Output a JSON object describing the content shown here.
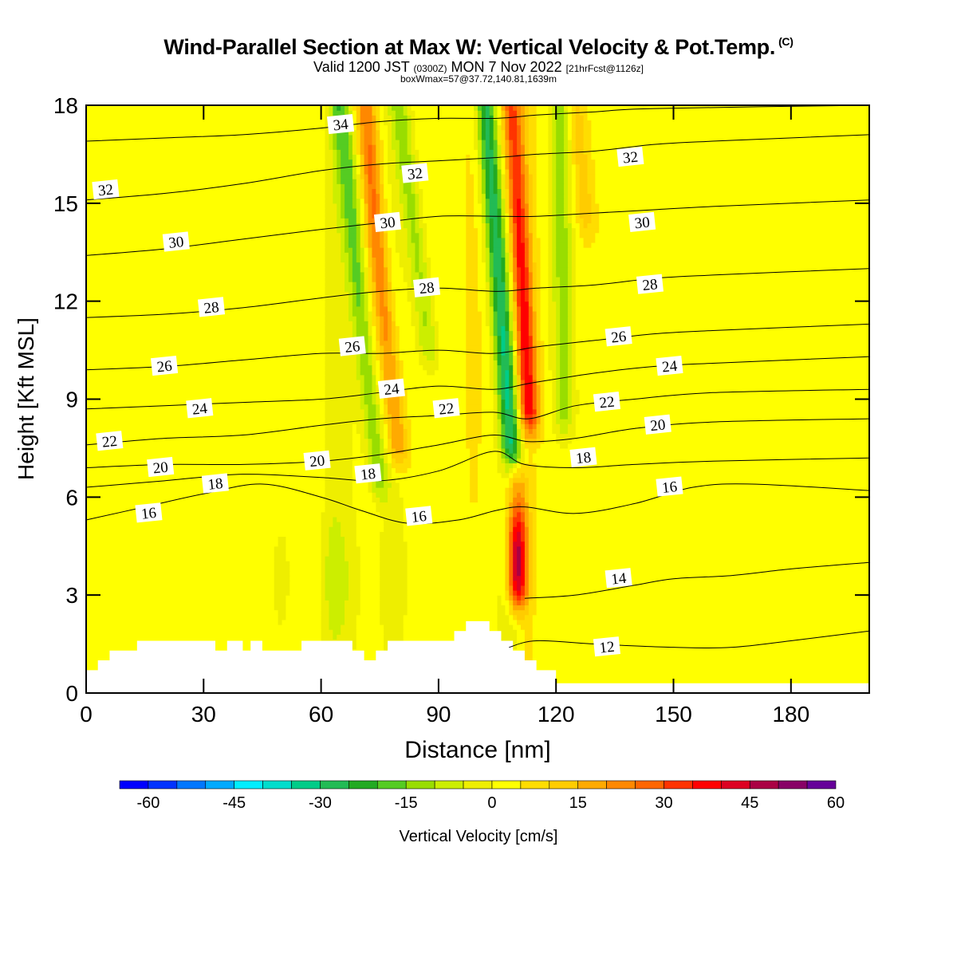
{
  "header": {
    "title": "Wind-Parallel Section at Max W: Vertical Velocity & Pot.Temp.",
    "title_mark": "(C)",
    "subtitle_pre": "Valid 1200 JST",
    "subtitle_utc": "(0300Z)",
    "subtitle_mid": "MON 7 Nov 2022",
    "subtitle_fcst": "[21hrFcst@1126z]",
    "subtitle2": "boxWmax=57@37.72,140.81,1639m"
  },
  "chart_data": {
    "type": "heatmap",
    "xlabel": "Distance [nm]",
    "ylabel": "Height [Kft MSL]",
    "xlim": [
      0,
      200
    ],
    "ylim": [
      0,
      18
    ],
    "xticks": [
      0,
      30,
      60,
      90,
      120,
      150,
      180
    ],
    "yticks": [
      0,
      3,
      6,
      9,
      12,
      15,
      18
    ],
    "colorbar": {
      "label": "Vertical Velocity [cm/s]",
      "ticks": [
        -60,
        -45,
        -30,
        -15,
        0,
        15,
        30,
        45,
        60
      ],
      "min": -65,
      "step": 5,
      "colors": [
        "#0000ff",
        "#0033ff",
        "#0077ff",
        "#00aaff",
        "#00eeff",
        "#00ddcc",
        "#00cc88",
        "#22bb55",
        "#22aa22",
        "#55cc22",
        "#99dd00",
        "#ccee00",
        "#eeee00",
        "#ffff00",
        "#ffdd00",
        "#ffcc00",
        "#ffaa00",
        "#ff8800",
        "#ff6600",
        "#ff3300",
        "#ff0000",
        "#dd0022",
        "#aa0044",
        "#880066",
        "#660099"
      ]
    },
    "columns": [
      {
        "x": 4,
        "w": 5,
        "a": 0.5
      },
      {
        "x": 14,
        "w": 5,
        "a": 1.5
      },
      {
        "x": 22,
        "w": 4,
        "a": -1.5
      },
      {
        "x": 30,
        "w": 5,
        "a": 2
      },
      {
        "x": 38,
        "w": 4,
        "a": -1.5
      },
      {
        "x": 50,
        "w": 4,
        "a": -2
      },
      {
        "x": 56,
        "w": 4,
        "a": 2
      },
      {
        "x": 63,
        "w": 3,
        "a": -5
      },
      {
        "x": 67,
        "w": 4,
        "a": -3
      },
      {
        "x": 73,
        "w": 3,
        "a": 4
      },
      {
        "x": 78,
        "w": 4,
        "a": -4
      },
      {
        "x": 88,
        "w": 5,
        "a": 1
      },
      {
        "x": 99,
        "w": 3,
        "a": 3
      },
      {
        "x": 108,
        "w": 3,
        "a": -5
      },
      {
        "x": 112,
        "w": 3,
        "a": 5
      },
      {
        "x": 123,
        "w": 4,
        "a": -1.5
      },
      {
        "x": 145,
        "w": 5,
        "a": -1
      },
      {
        "x": 158,
        "w": 6,
        "a": 1
      },
      {
        "x": 170,
        "w": 4,
        "a": -1
      },
      {
        "x": 183,
        "w": 4,
        "a": 1
      },
      {
        "x": 192,
        "w": 4,
        "a": -1
      }
    ],
    "plumes": [
      {
        "name": "updraft",
        "y0": 2.5,
        "x0": 110,
        "y1": 6.5,
        "x1": 110,
        "wv": 48,
        "peak_y": 4,
        "wy": 2.2
      },
      {
        "name": "downdraft-core",
        "y0": 7,
        "x0": 109,
        "y1": 18,
        "x1": 102,
        "wv": -30
      },
      {
        "name": "updraft-right",
        "y0": 8,
        "x0": 113.5,
        "y1": 18,
        "x1": 108.5,
        "wv": 32
      },
      {
        "name": "downdraft-left",
        "y0": 6,
        "x0": 75,
        "y1": 18,
        "x1": 65,
        "wv": -18
      },
      {
        "name": "updraft-left",
        "y0": 7,
        "x0": 80,
        "y1": 18,
        "x1": 71,
        "wv": 20
      },
      {
        "name": "downdraft-mid",
        "y0": 10,
        "x0": 88,
        "y1": 18,
        "x1": 80,
        "wv": -14
      },
      {
        "name": "downdraft-right",
        "y0": 8,
        "x0": 122,
        "y1": 18,
        "x1": 121,
        "wv": -14
      },
      {
        "name": "updraft-top",
        "y0": 14,
        "x0": 128,
        "y1": 18,
        "x1": 125,
        "wv": 10
      }
    ],
    "isentropes": [
      {
        "value": 12,
        "pts": [
          [
            108,
            1.4
          ],
          [
            115,
            1.6
          ],
          [
            130,
            1.5
          ],
          [
            150,
            1.4
          ],
          [
            165,
            1.4
          ],
          [
            180,
            1.6
          ],
          [
            200,
            1.9
          ]
        ]
      },
      {
        "value": 14,
        "pts": [
          [
            112,
            2.9
          ],
          [
            125,
            3.0
          ],
          [
            140,
            3.3
          ],
          [
            150,
            3.5
          ],
          [
            165,
            3.6
          ],
          [
            180,
            3.8
          ],
          [
            200,
            4.0
          ]
        ]
      },
      {
        "value": 16,
        "pts": [
          [
            0,
            5.3
          ],
          [
            15,
            5.7
          ],
          [
            30,
            6.1
          ],
          [
            45,
            6.4
          ],
          [
            60,
            6.0
          ],
          [
            70,
            5.6
          ],
          [
            82,
            5.2
          ],
          [
            95,
            5.3
          ],
          [
            105,
            5.6
          ],
          [
            112,
            5.7
          ],
          [
            125,
            5.5
          ],
          [
            140,
            5.8
          ],
          [
            155,
            6.3
          ],
          [
            170,
            6.4
          ],
          [
            200,
            6.2
          ]
        ]
      },
      {
        "value": 18,
        "pts": [
          [
            0,
            6.3
          ],
          [
            20,
            6.5
          ],
          [
            40,
            6.7
          ],
          [
            60,
            6.6
          ],
          [
            75,
            6.5
          ],
          [
            90,
            6.8
          ],
          [
            104,
            7.4
          ],
          [
            112,
            7.0
          ],
          [
            125,
            6.9
          ],
          [
            140,
            7.0
          ],
          [
            160,
            7.1
          ],
          [
            200,
            7.2
          ]
        ]
      },
      {
        "value": 20,
        "pts": [
          [
            0,
            6.9
          ],
          [
            20,
            7.0
          ],
          [
            40,
            7.0
          ],
          [
            60,
            7.1
          ],
          [
            75,
            7.3
          ],
          [
            90,
            7.6
          ],
          [
            104,
            7.9
          ],
          [
            113,
            7.7
          ],
          [
            125,
            7.8
          ],
          [
            140,
            8.1
          ],
          [
            160,
            8.3
          ],
          [
            200,
            8.4
          ]
        ]
      },
      {
        "value": 22,
        "pts": [
          [
            0,
            7.6
          ],
          [
            20,
            7.8
          ],
          [
            40,
            7.9
          ],
          [
            60,
            8.2
          ],
          [
            75,
            8.4
          ],
          [
            90,
            8.5
          ],
          [
            104,
            8.6
          ],
          [
            113,
            8.4
          ],
          [
            125,
            8.8
          ],
          [
            140,
            9.0
          ],
          [
            160,
            9.2
          ],
          [
            200,
            9.3
          ]
        ]
      },
      {
        "value": 24,
        "pts": [
          [
            0,
            8.7
          ],
          [
            20,
            8.8
          ],
          [
            40,
            8.9
          ],
          [
            60,
            9.0
          ],
          [
            75,
            9.2
          ],
          [
            90,
            9.4
          ],
          [
            104,
            9.3
          ],
          [
            114,
            9.5
          ],
          [
            130,
            9.8
          ],
          [
            145,
            10.0
          ],
          [
            160,
            10.1
          ],
          [
            200,
            10.3
          ]
        ]
      },
      {
        "value": 26,
        "pts": [
          [
            0,
            9.9
          ],
          [
            20,
            10.0
          ],
          [
            40,
            10.2
          ],
          [
            60,
            10.4
          ],
          [
            75,
            10.4
          ],
          [
            90,
            10.5
          ],
          [
            104,
            10.4
          ],
          [
            115,
            10.6
          ],
          [
            130,
            10.8
          ],
          [
            145,
            11.0
          ],
          [
            160,
            11.1
          ],
          [
            200,
            11.3
          ]
        ]
      },
      {
        "value": 28,
        "pts": [
          [
            0,
            11.5
          ],
          [
            20,
            11.6
          ],
          [
            40,
            11.8
          ],
          [
            60,
            12.1
          ],
          [
            75,
            12.3
          ],
          [
            90,
            12.4
          ],
          [
            105,
            12.3
          ],
          [
            115,
            12.4
          ],
          [
            130,
            12.5
          ],
          [
            145,
            12.7
          ],
          [
            160,
            12.8
          ],
          [
            200,
            13.0
          ]
        ]
      },
      {
        "value": 30,
        "pts": [
          [
            0,
            13.4
          ],
          [
            20,
            13.6
          ],
          [
            40,
            13.9
          ],
          [
            60,
            14.2
          ],
          [
            75,
            14.4
          ],
          [
            90,
            14.6
          ],
          [
            105,
            14.6
          ],
          [
            115,
            14.6
          ],
          [
            130,
            14.7
          ],
          [
            145,
            14.8
          ],
          [
            160,
            14.9
          ],
          [
            200,
            15.1
          ]
        ]
      },
      {
        "value": 32,
        "pts": [
          [
            0,
            15.1
          ],
          [
            20,
            15.3
          ],
          [
            40,
            15.6
          ],
          [
            60,
            16.0
          ],
          [
            75,
            16.2
          ],
          [
            90,
            16.3
          ],
          [
            105,
            16.4
          ],
          [
            115,
            16.5
          ],
          [
            130,
            16.6
          ],
          [
            145,
            16.8
          ],
          [
            160,
            16.9
          ],
          [
            200,
            17.1
          ]
        ]
      },
      {
        "value": 34,
        "pts": [
          [
            0,
            16.9
          ],
          [
            20,
            17.0
          ],
          [
            40,
            17.1
          ],
          [
            60,
            17.3
          ],
          [
            75,
            17.5
          ],
          [
            90,
            17.6
          ],
          [
            105,
            17.6
          ],
          [
            115,
            17.7
          ],
          [
            130,
            17.8
          ],
          [
            145,
            17.9
          ],
          [
            200,
            18.0
          ]
        ]
      }
    ],
    "isentrope_labels": [
      {
        "text": "34",
        "x": 65,
        "y": 17.4
      },
      {
        "text": "32",
        "x": 5,
        "y": 15.4
      },
      {
        "text": "32",
        "x": 84,
        "y": 15.9
      },
      {
        "text": "32",
        "x": 139,
        "y": 16.4
      },
      {
        "text": "30",
        "x": 23,
        "y": 13.8
      },
      {
        "text": "30",
        "x": 77,
        "y": 14.4
      },
      {
        "text": "30",
        "x": 142,
        "y": 14.4
      },
      {
        "text": "28",
        "x": 32,
        "y": 11.8
      },
      {
        "text": "28",
        "x": 87,
        "y": 12.4
      },
      {
        "text": "28",
        "x": 144,
        "y": 12.5
      },
      {
        "text": "26",
        "x": 20,
        "y": 10.0
      },
      {
        "text": "26",
        "x": 68,
        "y": 10.6
      },
      {
        "text": "26",
        "x": 136,
        "y": 10.9
      },
      {
        "text": "24",
        "x": 29,
        "y": 8.7
      },
      {
        "text": "24",
        "x": 78,
        "y": 9.3
      },
      {
        "text": "24",
        "x": 149,
        "y": 10.0
      },
      {
        "text": "22",
        "x": 6,
        "y": 7.7
      },
      {
        "text": "22",
        "x": 92,
        "y": 8.7
      },
      {
        "text": "22",
        "x": 133,
        "y": 8.9
      },
      {
        "text": "20",
        "x": 19,
        "y": 6.9
      },
      {
        "text": "20",
        "x": 59,
        "y": 7.1
      },
      {
        "text": "20",
        "x": 146,
        "y": 8.2
      },
      {
        "text": "18",
        "x": 33,
        "y": 6.4
      },
      {
        "text": "18",
        "x": 72,
        "y": 6.7
      },
      {
        "text": "18",
        "x": 127,
        "y": 7.2
      },
      {
        "text": "16",
        "x": 16,
        "y": 5.5
      },
      {
        "text": "16",
        "x": 85,
        "y": 5.4
      },
      {
        "text": "16",
        "x": 149,
        "y": 6.3
      },
      {
        "text": "14",
        "x": 136,
        "y": 3.5
      },
      {
        "text": "12",
        "x": 133,
        "y": 1.4
      }
    ],
    "terrain": [
      [
        0,
        0.7
      ],
      [
        3,
        0.7
      ],
      [
        3,
        1.0
      ],
      [
        6,
        1.0
      ],
      [
        6,
        1.3
      ],
      [
        13,
        1.3
      ],
      [
        13,
        1.6
      ],
      [
        33,
        1.6
      ],
      [
        33,
        1.3
      ],
      [
        36,
        1.3
      ],
      [
        36,
        1.6
      ],
      [
        40,
        1.6
      ],
      [
        40,
        1.3
      ],
      [
        42,
        1.3
      ],
      [
        42,
        1.6
      ],
      [
        45,
        1.6
      ],
      [
        45,
        1.3
      ],
      [
        55,
        1.3
      ],
      [
        55,
        1.6
      ],
      [
        68,
        1.6
      ],
      [
        68,
        1.3
      ],
      [
        71,
        1.3
      ],
      [
        71,
        1.0
      ],
      [
        74,
        1.0
      ],
      [
        74,
        1.3
      ],
      [
        77,
        1.3
      ],
      [
        77,
        1.6
      ],
      [
        94,
        1.6
      ],
      [
        94,
        1.9
      ],
      [
        97,
        1.9
      ],
      [
        97,
        2.2
      ],
      [
        103,
        2.2
      ],
      [
        103,
        1.9
      ],
      [
        106,
        1.9
      ],
      [
        106,
        1.6
      ],
      [
        109,
        1.6
      ],
      [
        109,
        1.3
      ],
      [
        112,
        1.3
      ],
      [
        112,
        1.0
      ],
      [
        115,
        1.0
      ],
      [
        115,
        0.7
      ],
      [
        120,
        0.7
      ],
      [
        120,
        0.3
      ],
      [
        200,
        0.3
      ]
    ]
  }
}
